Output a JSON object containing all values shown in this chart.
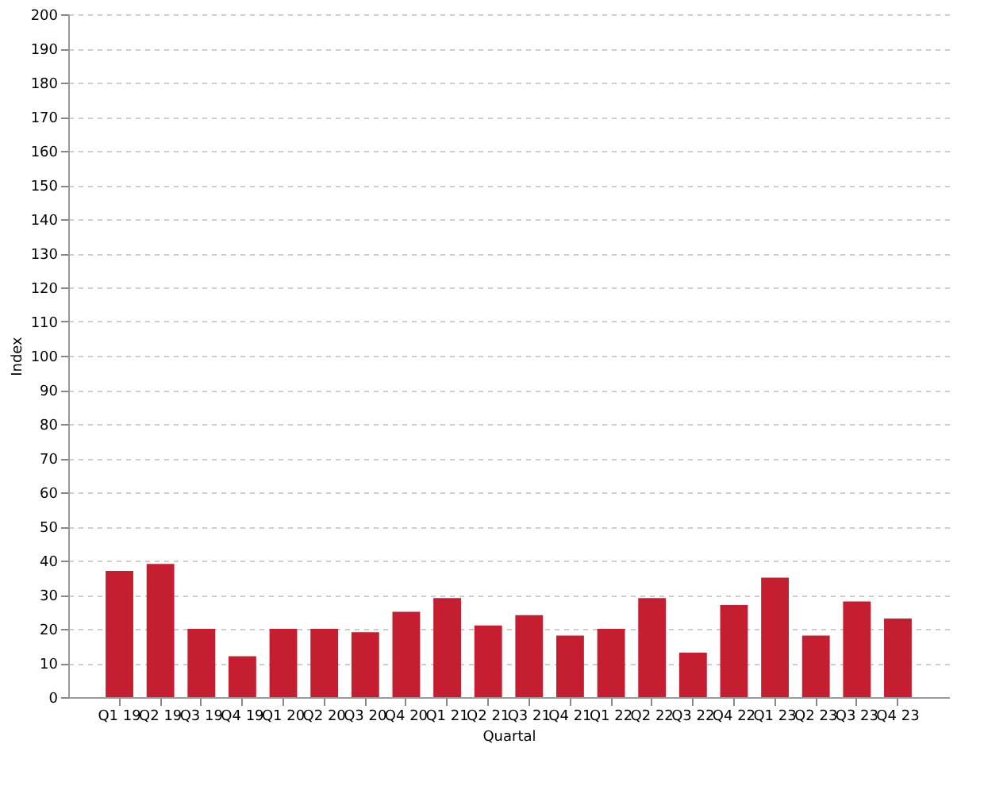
{
  "chart_data": {
    "type": "bar",
    "xlabel": "Quartal",
    "ylabel": "Index",
    "categories": [
      "Q1 19",
      "Q2 19",
      "Q3 19",
      "Q4 19",
      "Q1 20",
      "Q2 20",
      "Q3 20",
      "Q4 20",
      "Q1 21",
      "Q2 21",
      "Q3 21",
      "Q4 21",
      "Q1 22",
      "Q2 22",
      "Q3 22",
      "Q4 22",
      "Q1 23",
      "Q2 23",
      "Q3 23",
      "Q4 23"
    ],
    "values": [
      37,
      39,
      20,
      12,
      20,
      20,
      19,
      25,
      29,
      21,
      24,
      18,
      20,
      29,
      13,
      27,
      35,
      18,
      28,
      23
    ],
    "color": "#c41e30",
    "ylim": [
      0,
      200
    ],
    "yticks": [
      0,
      10,
      20,
      30,
      40,
      50,
      60,
      70,
      80,
      90,
      100,
      110,
      120,
      130,
      140,
      150,
      160,
      170,
      180,
      190,
      200
    ],
    "grid": "y"
  }
}
